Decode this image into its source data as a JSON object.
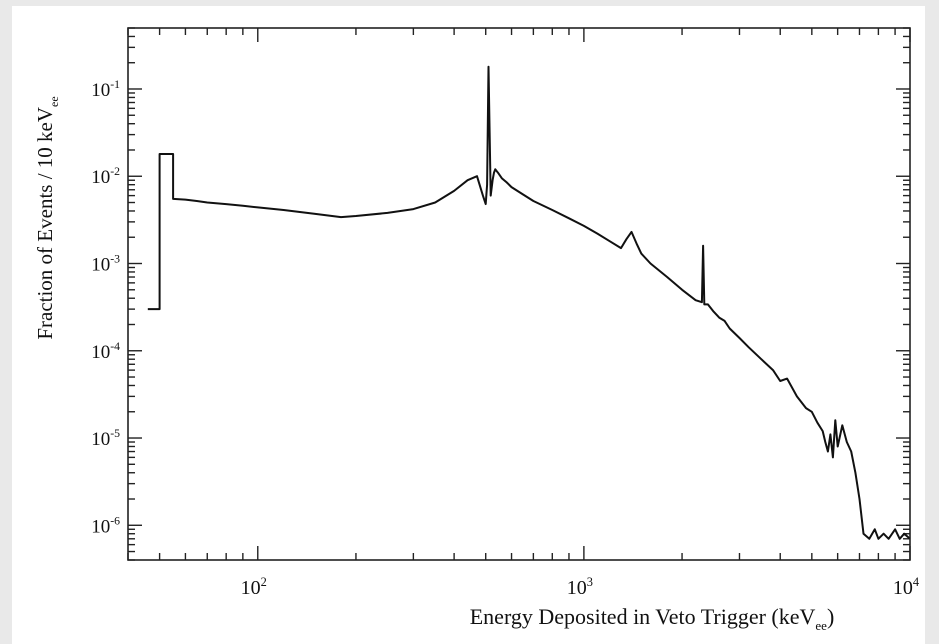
{
  "chart_data": {
    "type": "line",
    "title": "",
    "xlabel": "Energy Deposited in Veto Trigger (keV",
    "xlabel_sub": "ee",
    "xlabel_close": ")",
    "ylabel": "Fraction of Events / 10 keV",
    "ylabel_sub": "ee",
    "x_scale": "log",
    "y_scale": "log",
    "xlim": [
      40,
      10000
    ],
    "ylim": [
      4e-07,
      0.5
    ],
    "x_ticks": [
      {
        "base": "10",
        "exp": "2"
      },
      {
        "base": "10",
        "exp": "3"
      },
      {
        "base": "10",
        "exp": "4"
      }
    ],
    "y_ticks": [
      {
        "base": "10",
        "exp": "-1"
      },
      {
        "base": "10",
        "exp": "-2"
      },
      {
        "base": "10",
        "exp": "-3"
      },
      {
        "base": "10",
        "exp": "-4"
      },
      {
        "base": "10",
        "exp": "-5"
      },
      {
        "base": "10",
        "exp": "-6"
      }
    ],
    "grid": false,
    "legend": "none",
    "line_color": "#111111",
    "series": [
      {
        "x": [
          46,
          46,
          50,
          50,
          55,
          55,
          60,
          65,
          70,
          80,
          90,
          100,
          120,
          150,
          180,
          200,
          250,
          300,
          350,
          400,
          440,
          470,
          490,
          500,
          505,
          510,
          518,
          525,
          530,
          535,
          540,
          545,
          550,
          560,
          580,
          600,
          650,
          700,
          800,
          900,
          1000,
          1100,
          1200,
          1300,
          1350,
          1400,
          1450,
          1500,
          1600,
          1800,
          2000,
          2200,
          2300,
          2320,
          2340,
          2400,
          2500,
          2600,
          2700,
          2800,
          3000,
          3200,
          3500,
          3800,
          4000,
          4200,
          4500,
          4800,
          5000,
          5200,
          5400,
          5500,
          5600,
          5700,
          5800,
          5900,
          6000,
          6200,
          6400,
          6600,
          6800,
          7000,
          7200,
          7500,
          7800,
          8000,
          8300,
          8600,
          9000,
          9300,
          9600,
          10000
        ],
        "y": [
          0.0003,
          0.0003,
          0.0003,
          0.018,
          0.018,
          0.0055,
          0.0054,
          0.0052,
          0.005,
          0.0048,
          0.0046,
          0.0044,
          0.0041,
          0.0037,
          0.0034,
          0.0035,
          0.0038,
          0.0042,
          0.005,
          0.0068,
          0.009,
          0.01,
          0.006,
          0.0048,
          0.008,
          0.18,
          0.006,
          0.009,
          0.011,
          0.012,
          0.0115,
          0.011,
          0.0105,
          0.0095,
          0.0085,
          0.0075,
          0.0062,
          0.0052,
          0.0041,
          0.0033,
          0.0027,
          0.0022,
          0.0018,
          0.0015,
          0.0019,
          0.0023,
          0.0017,
          0.0013,
          0.001,
          0.0007,
          0.0005,
          0.00038,
          0.00036,
          0.0016,
          0.00034,
          0.00034,
          0.00028,
          0.00024,
          0.00022,
          0.00018,
          0.00014,
          0.00011,
          8e-05,
          6e-05,
          4.5e-05,
          4.8e-05,
          3e-05,
          2.2e-05,
          2e-05,
          1.5e-05,
          1.2e-05,
          9e-06,
          7e-06,
          1.1e-05,
          6e-06,
          1.6e-05,
          8e-06,
          1.4e-05,
          9e-06,
          7e-06,
          4e-06,
          2e-06,
          8e-07,
          7e-07,
          9e-07,
          7e-07,
          8e-07,
          7e-07,
          9e-07,
          7e-07,
          8e-07,
          7e-07
        ]
      }
    ]
  }
}
